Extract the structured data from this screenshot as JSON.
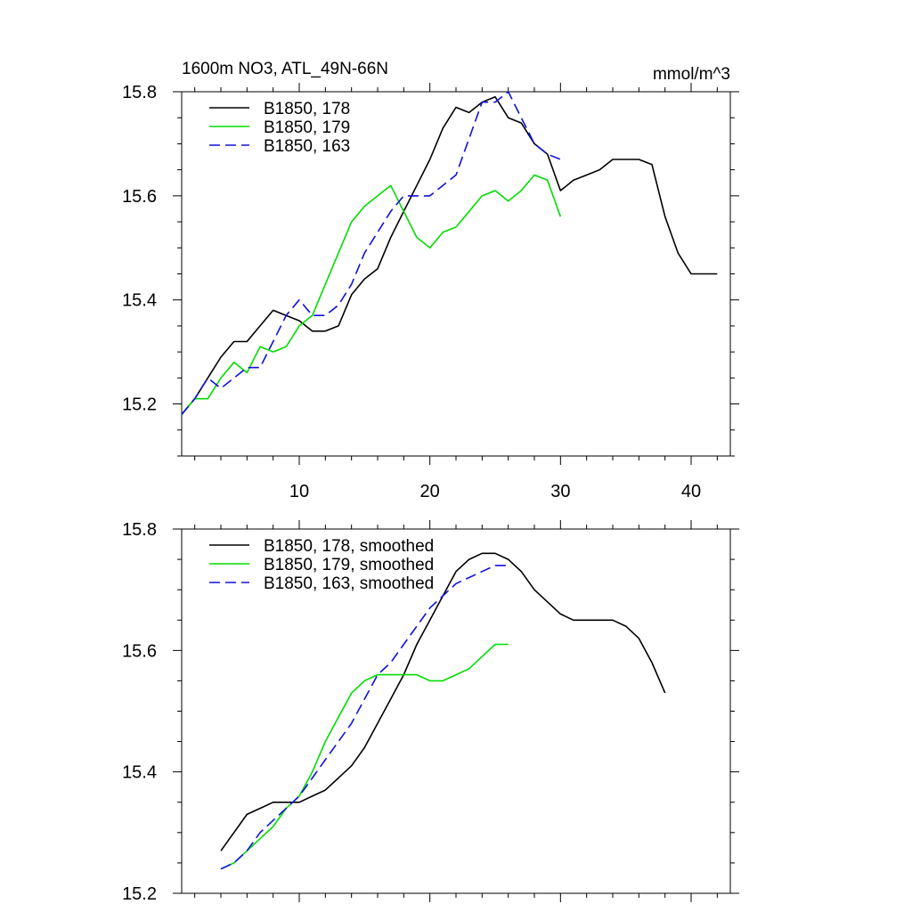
{
  "chart_data": [
    {
      "type": "line",
      "title": "1600m NO3, ATL_49N-66N",
      "units": "mmol/m^3",
      "xlim": [
        1,
        43
      ],
      "ylim": [
        15.1,
        15.8
      ],
      "xticks": [
        10,
        20,
        30,
        40
      ],
      "yticks": [
        15.2,
        15.4,
        15.6,
        15.8
      ],
      "legend_position": "top-left",
      "series": [
        {
          "name": "B1850, 178",
          "color": "#000000",
          "dash": "solid",
          "x": [
            1,
            2,
            3,
            4,
            5,
            6,
            7,
            8,
            9,
            10,
            11,
            12,
            13,
            14,
            15,
            16,
            17,
            18,
            19,
            20,
            21,
            22,
            23,
            24,
            25,
            26,
            27,
            28,
            29,
            30,
            31,
            32,
            33,
            34,
            35,
            36,
            37,
            38,
            39,
            40,
            41,
            42
          ],
          "y": [
            15.18,
            15.21,
            15.25,
            15.29,
            15.32,
            15.32,
            15.35,
            15.38,
            15.37,
            15.36,
            15.34,
            15.34,
            15.35,
            15.41,
            15.44,
            15.46,
            15.52,
            15.57,
            15.62,
            15.67,
            15.73,
            15.77,
            15.76,
            15.78,
            15.79,
            15.75,
            15.74,
            15.7,
            15.68,
            15.61,
            15.63,
            15.64,
            15.65,
            15.67,
            15.67,
            15.67,
            15.66,
            15.56,
            15.49,
            15.45,
            15.45,
            15.45
          ]
        },
        {
          "name": "B1850, 179",
          "color": "#00dd00",
          "dash": "solid",
          "x": [
            1,
            2,
            3,
            4,
            5,
            6,
            7,
            8,
            9,
            10,
            11,
            12,
            13,
            14,
            15,
            16,
            17,
            18,
            19,
            20,
            21,
            22,
            23,
            24,
            25,
            26,
            27,
            28,
            29,
            30
          ],
          "y": [
            15.18,
            15.21,
            15.21,
            15.25,
            15.28,
            15.26,
            15.31,
            15.3,
            15.31,
            15.35,
            15.37,
            15.43,
            15.49,
            15.55,
            15.58,
            15.6,
            15.62,
            15.57,
            15.52,
            15.5,
            15.53,
            15.54,
            15.57,
            15.6,
            15.61,
            15.59,
            15.61,
            15.64,
            15.63,
            15.56
          ]
        },
        {
          "name": "B1850, 163",
          "color": "#1010dd",
          "dash": "dashed",
          "x": [
            1,
            2,
            3,
            4,
            5,
            6,
            7,
            8,
            9,
            10,
            11,
            12,
            13,
            14,
            15,
            16,
            17,
            18,
            19,
            20,
            21,
            22,
            23,
            24,
            25,
            26,
            27,
            28,
            29,
            30
          ],
          "y": [
            15.18,
            15.21,
            15.25,
            15.23,
            15.25,
            15.27,
            15.27,
            15.32,
            15.37,
            15.4,
            15.37,
            15.37,
            15.39,
            15.43,
            15.49,
            15.53,
            15.57,
            15.6,
            15.6,
            15.6,
            15.62,
            15.64,
            15.71,
            15.78,
            15.78,
            15.8,
            15.75,
            15.7,
            15.68,
            15.67
          ]
        }
      ]
    },
    {
      "type": "line",
      "title": "",
      "xlim": [
        1,
        43
      ],
      "ylim": [
        15.2,
        15.8
      ],
      "xticks": [
        10,
        20,
        30,
        40
      ],
      "yticks": [
        15.2,
        15.4,
        15.6,
        15.8
      ],
      "legend_position": "top-left",
      "series": [
        {
          "name": "B1850, 178, smoothed",
          "color": "#000000",
          "dash": "solid",
          "x": [
            4,
            5,
            6,
            7,
            8,
            9,
            10,
            11,
            12,
            13,
            14,
            15,
            16,
            17,
            18,
            19,
            20,
            21,
            22,
            23,
            24,
            25,
            26,
            27,
            28,
            29,
            30,
            31,
            32,
            33,
            34,
            35,
            36,
            37,
            38
          ],
          "y": [
            15.27,
            15.3,
            15.33,
            15.34,
            15.35,
            15.35,
            15.35,
            15.36,
            15.37,
            15.39,
            15.41,
            15.44,
            15.48,
            15.52,
            15.56,
            15.61,
            15.65,
            15.69,
            15.73,
            15.75,
            15.76,
            15.76,
            15.75,
            15.73,
            15.7,
            15.68,
            15.66,
            15.65,
            15.65,
            15.65,
            15.65,
            15.64,
            15.62,
            15.58,
            15.53
          ]
        },
        {
          "name": "B1850, 179, smoothed",
          "color": "#00dd00",
          "dash": "solid",
          "x": [
            4,
            5,
            6,
            7,
            8,
            9,
            10,
            11,
            12,
            13,
            14,
            15,
            16,
            17,
            18,
            19,
            20,
            21,
            22,
            23,
            24,
            25,
            26
          ],
          "y": [
            15.24,
            15.25,
            15.27,
            15.29,
            15.31,
            15.34,
            15.36,
            15.4,
            15.45,
            15.49,
            15.53,
            15.55,
            15.56,
            15.56,
            15.56,
            15.56,
            15.55,
            15.55,
            15.56,
            15.57,
            15.59,
            15.61,
            15.61
          ]
        },
        {
          "name": "B1850, 163, smoothed",
          "color": "#1010dd",
          "dash": "dashed",
          "x": [
            4,
            5,
            6,
            7,
            8,
            9,
            10,
            11,
            12,
            13,
            14,
            15,
            16,
            17,
            18,
            19,
            20,
            21,
            22,
            23,
            24,
            25,
            26
          ],
          "y": [
            15.24,
            15.25,
            15.27,
            15.3,
            15.32,
            15.34,
            15.36,
            15.39,
            15.42,
            15.45,
            15.48,
            15.52,
            15.56,
            15.58,
            15.61,
            15.64,
            15.67,
            15.69,
            15.71,
            15.72,
            15.73,
            15.74,
            15.74
          ]
        }
      ]
    }
  ]
}
